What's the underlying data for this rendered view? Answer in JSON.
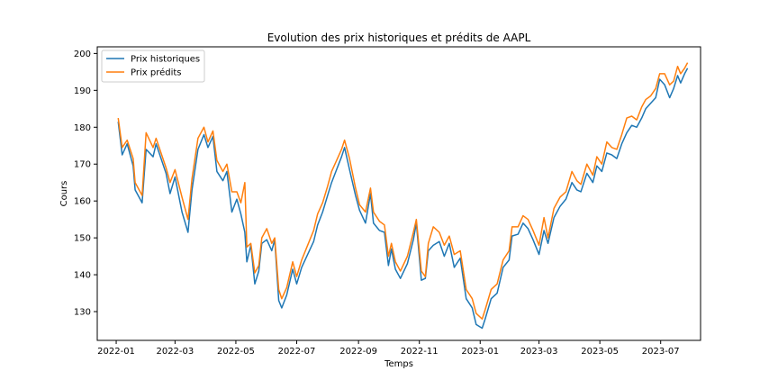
{
  "chart_data": {
    "type": "line",
    "title": "Evolution des prix historiques et prédits de AAPL",
    "xlabel": "Temps",
    "ylabel": "Cours",
    "xlim": [
      "2021-12-13",
      "2023-08-10"
    ],
    "ylim": [
      122.2,
      201.8
    ],
    "x_ticks": [
      "2022-01",
      "2022-03",
      "2022-05",
      "2022-07",
      "2022-09",
      "2022-11",
      "2023-01",
      "2023-03",
      "2023-05",
      "2023-07"
    ],
    "y_ticks": [
      130,
      140,
      150,
      160,
      170,
      180,
      190,
      200
    ],
    "grid": false,
    "legend": "top-left",
    "series": [
      {
        "name": "Prix historiques",
        "color": "#1f77b4",
        "points": [
          [
            "2022-01-03",
            181.5
          ],
          [
            "2022-01-07",
            172.5
          ],
          [
            "2022-01-12",
            175.5
          ],
          [
            "2022-01-18",
            169.5
          ],
          [
            "2022-01-20",
            163.0
          ],
          [
            "2022-01-27",
            159.5
          ],
          [
            "2022-01-31",
            174.0
          ],
          [
            "2022-02-07",
            172.0
          ],
          [
            "2022-02-10",
            175.5
          ],
          [
            "2022-02-15",
            171.5
          ],
          [
            "2022-02-20",
            167.5
          ],
          [
            "2022-02-24",
            162.0
          ],
          [
            "2022-03-01",
            166.5
          ],
          [
            "2022-03-08",
            157.0
          ],
          [
            "2022-03-14",
            151.5
          ],
          [
            "2022-03-18",
            163.0
          ],
          [
            "2022-03-24",
            174.0
          ],
          [
            "2022-03-30",
            178.0
          ],
          [
            "2022-04-03",
            174.5
          ],
          [
            "2022-04-08",
            177.5
          ],
          [
            "2022-04-12",
            168.0
          ],
          [
            "2022-04-18",
            165.5
          ],
          [
            "2022-04-22",
            168.0
          ],
          [
            "2022-04-27",
            157.0
          ],
          [
            "2022-05-02",
            160.5
          ],
          [
            "2022-05-06",
            156.5
          ],
          [
            "2022-05-10",
            151.5
          ],
          [
            "2022-05-12",
            143.5
          ],
          [
            "2022-05-16",
            148.0
          ],
          [
            "2022-05-20",
            137.5
          ],
          [
            "2022-05-24",
            141.0
          ],
          [
            "2022-05-27",
            148.5
          ],
          [
            "2022-06-01",
            149.5
          ],
          [
            "2022-06-06",
            146.5
          ],
          [
            "2022-06-09",
            149.5
          ],
          [
            "2022-06-13",
            133.0
          ],
          [
            "2022-06-16",
            131.0
          ],
          [
            "2022-06-21",
            134.5
          ],
          [
            "2022-06-27",
            141.5
          ],
          [
            "2022-07-01",
            137.5
          ],
          [
            "2022-07-06",
            142.0
          ],
          [
            "2022-07-12",
            145.5
          ],
          [
            "2022-07-18",
            149.0
          ],
          [
            "2022-07-22",
            153.5
          ],
          [
            "2022-07-27",
            157.0
          ],
          [
            "2022-08-01",
            161.5
          ],
          [
            "2022-08-05",
            165.0
          ],
          [
            "2022-08-10",
            168.5
          ],
          [
            "2022-08-15",
            172.0
          ],
          [
            "2022-08-18",
            174.5
          ],
          [
            "2022-08-23",
            168.5
          ],
          [
            "2022-08-29",
            161.5
          ],
          [
            "2022-09-02",
            157.5
          ],
          [
            "2022-09-08",
            154.0
          ],
          [
            "2022-09-13",
            162.0
          ],
          [
            "2022-09-16",
            154.0
          ],
          [
            "2022-09-22",
            152.0
          ],
          [
            "2022-09-27",
            151.5
          ],
          [
            "2022-10-01",
            142.5
          ],
          [
            "2022-10-04",
            147.0
          ],
          [
            "2022-10-08",
            141.5
          ],
          [
            "2022-10-13",
            139.0
          ],
          [
            "2022-10-20",
            143.0
          ],
          [
            "2022-10-26",
            149.5
          ],
          [
            "2022-10-29",
            154.0
          ],
          [
            "2022-11-03",
            138.5
          ],
          [
            "2022-11-07",
            139.0
          ],
          [
            "2022-11-10",
            146.5
          ],
          [
            "2022-11-15",
            148.0
          ],
          [
            "2022-11-21",
            149.0
          ],
          [
            "2022-11-26",
            145.0
          ],
          [
            "2022-12-01",
            148.5
          ],
          [
            "2022-12-06",
            142.0
          ],
          [
            "2022-12-12",
            144.5
          ],
          [
            "2022-12-18",
            133.5
          ],
          [
            "2022-12-24",
            131.0
          ],
          [
            "2022-12-28",
            126.5
          ],
          [
            "2023-01-03",
            125.5
          ],
          [
            "2023-01-06",
            128.0
          ],
          [
            "2023-01-12",
            133.5
          ],
          [
            "2023-01-18",
            135.0
          ],
          [
            "2023-01-24",
            142.0
          ],
          [
            "2023-01-30",
            144.0
          ],
          [
            "2023-02-02",
            150.5
          ],
          [
            "2023-02-08",
            151.0
          ],
          [
            "2023-02-13",
            154.0
          ],
          [
            "2023-02-18",
            152.5
          ],
          [
            "2023-02-23",
            149.5
          ],
          [
            "2023-03-01",
            145.5
          ],
          [
            "2023-03-06",
            152.0
          ],
          [
            "2023-03-10",
            148.5
          ],
          [
            "2023-03-16",
            155.5
          ],
          [
            "2023-03-22",
            158.5
          ],
          [
            "2023-03-28",
            160.5
          ],
          [
            "2023-04-03",
            165.0
          ],
          [
            "2023-04-08",
            163.0
          ],
          [
            "2023-04-12",
            162.5
          ],
          [
            "2023-04-18",
            167.5
          ],
          [
            "2023-04-24",
            165.0
          ],
          [
            "2023-04-28",
            169.5
          ],
          [
            "2023-05-03",
            168.0
          ],
          [
            "2023-05-08",
            173.0
          ],
          [
            "2023-05-13",
            172.5
          ],
          [
            "2023-05-18",
            171.5
          ],
          [
            "2023-05-23",
            175.5
          ],
          [
            "2023-05-28",
            178.5
          ],
          [
            "2023-06-02",
            180.5
          ],
          [
            "2023-06-07",
            180.0
          ],
          [
            "2023-06-12",
            182.5
          ],
          [
            "2023-06-16",
            185.0
          ],
          [
            "2023-06-21",
            186.5
          ],
          [
            "2023-06-26",
            188.0
          ],
          [
            "2023-06-30",
            193.0
          ],
          [
            "2023-07-05",
            191.5
          ],
          [
            "2023-07-10",
            188.0
          ],
          [
            "2023-07-14",
            190.5
          ],
          [
            "2023-07-18",
            194.0
          ],
          [
            "2023-07-21",
            192.0
          ],
          [
            "2023-07-25",
            194.5
          ],
          [
            "2023-07-28",
            196.0
          ]
        ]
      },
      {
        "name": "Prix prédits",
        "color": "#ff7f0e",
        "points": [
          [
            "2022-01-03",
            182.5
          ],
          [
            "2022-01-07",
            174.5
          ],
          [
            "2022-01-12",
            176.5
          ],
          [
            "2022-01-18",
            171.5
          ],
          [
            "2022-01-20",
            165.0
          ],
          [
            "2022-01-27",
            161.5
          ],
          [
            "2022-01-31",
            178.5
          ],
          [
            "2022-02-07",
            174.5
          ],
          [
            "2022-02-10",
            177.0
          ],
          [
            "2022-02-15",
            173.0
          ],
          [
            "2022-02-20",
            169.0
          ],
          [
            "2022-02-24",
            165.0
          ],
          [
            "2022-03-01",
            168.5
          ],
          [
            "2022-03-08",
            161.0
          ],
          [
            "2022-03-14",
            155.0
          ],
          [
            "2022-03-18",
            166.0
          ],
          [
            "2022-03-24",
            177.0
          ],
          [
            "2022-03-30",
            180.0
          ],
          [
            "2022-04-03",
            176.0
          ],
          [
            "2022-04-08",
            179.0
          ],
          [
            "2022-04-12",
            171.0
          ],
          [
            "2022-04-18",
            168.0
          ],
          [
            "2022-04-22",
            170.0
          ],
          [
            "2022-04-27",
            162.5
          ],
          [
            "2022-05-02",
            162.5
          ],
          [
            "2022-05-06",
            159.5
          ],
          [
            "2022-05-10",
            165.0
          ],
          [
            "2022-05-12",
            147.5
          ],
          [
            "2022-05-16",
            148.5
          ],
          [
            "2022-05-20",
            140.5
          ],
          [
            "2022-05-24",
            142.5
          ],
          [
            "2022-05-27",
            150.0
          ],
          [
            "2022-06-01",
            152.5
          ],
          [
            "2022-06-06",
            148.5
          ],
          [
            "2022-06-09",
            150.0
          ],
          [
            "2022-06-13",
            136.0
          ],
          [
            "2022-06-16",
            133.5
          ],
          [
            "2022-06-21",
            136.5
          ],
          [
            "2022-06-27",
            143.5
          ],
          [
            "2022-07-01",
            139.5
          ],
          [
            "2022-07-06",
            144.0
          ],
          [
            "2022-07-12",
            148.0
          ],
          [
            "2022-07-18",
            152.0
          ],
          [
            "2022-07-22",
            156.5
          ],
          [
            "2022-07-27",
            159.5
          ],
          [
            "2022-08-01",
            164.0
          ],
          [
            "2022-08-05",
            168.0
          ],
          [
            "2022-08-10",
            171.0
          ],
          [
            "2022-08-15",
            174.0
          ],
          [
            "2022-08-18",
            176.5
          ],
          [
            "2022-08-23",
            171.5
          ],
          [
            "2022-08-29",
            163.5
          ],
          [
            "2022-09-02",
            159.0
          ],
          [
            "2022-09-08",
            157.0
          ],
          [
            "2022-09-13",
            163.5
          ],
          [
            "2022-09-16",
            157.0
          ],
          [
            "2022-09-22",
            154.5
          ],
          [
            "2022-09-27",
            153.5
          ],
          [
            "2022-10-01",
            145.0
          ],
          [
            "2022-10-04",
            148.5
          ],
          [
            "2022-10-08",
            143.5
          ],
          [
            "2022-10-13",
            141.0
          ],
          [
            "2022-10-20",
            145.0
          ],
          [
            "2022-10-26",
            151.5
          ],
          [
            "2022-10-29",
            155.0
          ],
          [
            "2022-11-03",
            141.0
          ],
          [
            "2022-11-07",
            139.5
          ],
          [
            "2022-11-10",
            148.5
          ],
          [
            "2022-11-15",
            153.0
          ],
          [
            "2022-11-21",
            151.5
          ],
          [
            "2022-11-26",
            148.0
          ],
          [
            "2022-12-01",
            150.5
          ],
          [
            "2022-12-06",
            145.5
          ],
          [
            "2022-12-12",
            146.5
          ],
          [
            "2022-12-18",
            136.0
          ],
          [
            "2022-12-24",
            133.5
          ],
          [
            "2022-12-28",
            129.5
          ],
          [
            "2023-01-03",
            128.0
          ],
          [
            "2023-01-06",
            130.5
          ],
          [
            "2023-01-12",
            136.0
          ],
          [
            "2023-01-18",
            137.5
          ],
          [
            "2023-01-24",
            144.0
          ],
          [
            "2023-01-30",
            146.5
          ],
          [
            "2023-02-02",
            153.0
          ],
          [
            "2023-02-08",
            153.0
          ],
          [
            "2023-02-13",
            156.0
          ],
          [
            "2023-02-18",
            155.0
          ],
          [
            "2023-02-23",
            152.0
          ],
          [
            "2023-03-01",
            148.0
          ],
          [
            "2023-03-06",
            155.5
          ],
          [
            "2023-03-10",
            150.0
          ],
          [
            "2023-03-16",
            158.0
          ],
          [
            "2023-03-22",
            161.0
          ],
          [
            "2023-03-28",
            162.5
          ],
          [
            "2023-04-03",
            168.0
          ],
          [
            "2023-04-08",
            165.5
          ],
          [
            "2023-04-12",
            164.5
          ],
          [
            "2023-04-18",
            170.0
          ],
          [
            "2023-04-24",
            167.0
          ],
          [
            "2023-04-28",
            172.0
          ],
          [
            "2023-05-03",
            170.0
          ],
          [
            "2023-05-08",
            176.0
          ],
          [
            "2023-05-13",
            174.5
          ],
          [
            "2023-05-18",
            174.0
          ],
          [
            "2023-05-23",
            178.0
          ],
          [
            "2023-05-28",
            182.5
          ],
          [
            "2023-06-02",
            183.0
          ],
          [
            "2023-06-07",
            182.0
          ],
          [
            "2023-06-12",
            185.5
          ],
          [
            "2023-06-16",
            187.5
          ],
          [
            "2023-06-21",
            188.5
          ],
          [
            "2023-06-26",
            190.5
          ],
          [
            "2023-06-30",
            194.5
          ],
          [
            "2023-07-05",
            194.5
          ],
          [
            "2023-07-10",
            191.5
          ],
          [
            "2023-07-14",
            192.5
          ],
          [
            "2023-07-18",
            196.5
          ],
          [
            "2023-07-21",
            194.5
          ],
          [
            "2023-07-25",
            196.0
          ],
          [
            "2023-07-28",
            197.5
          ]
        ]
      }
    ]
  }
}
